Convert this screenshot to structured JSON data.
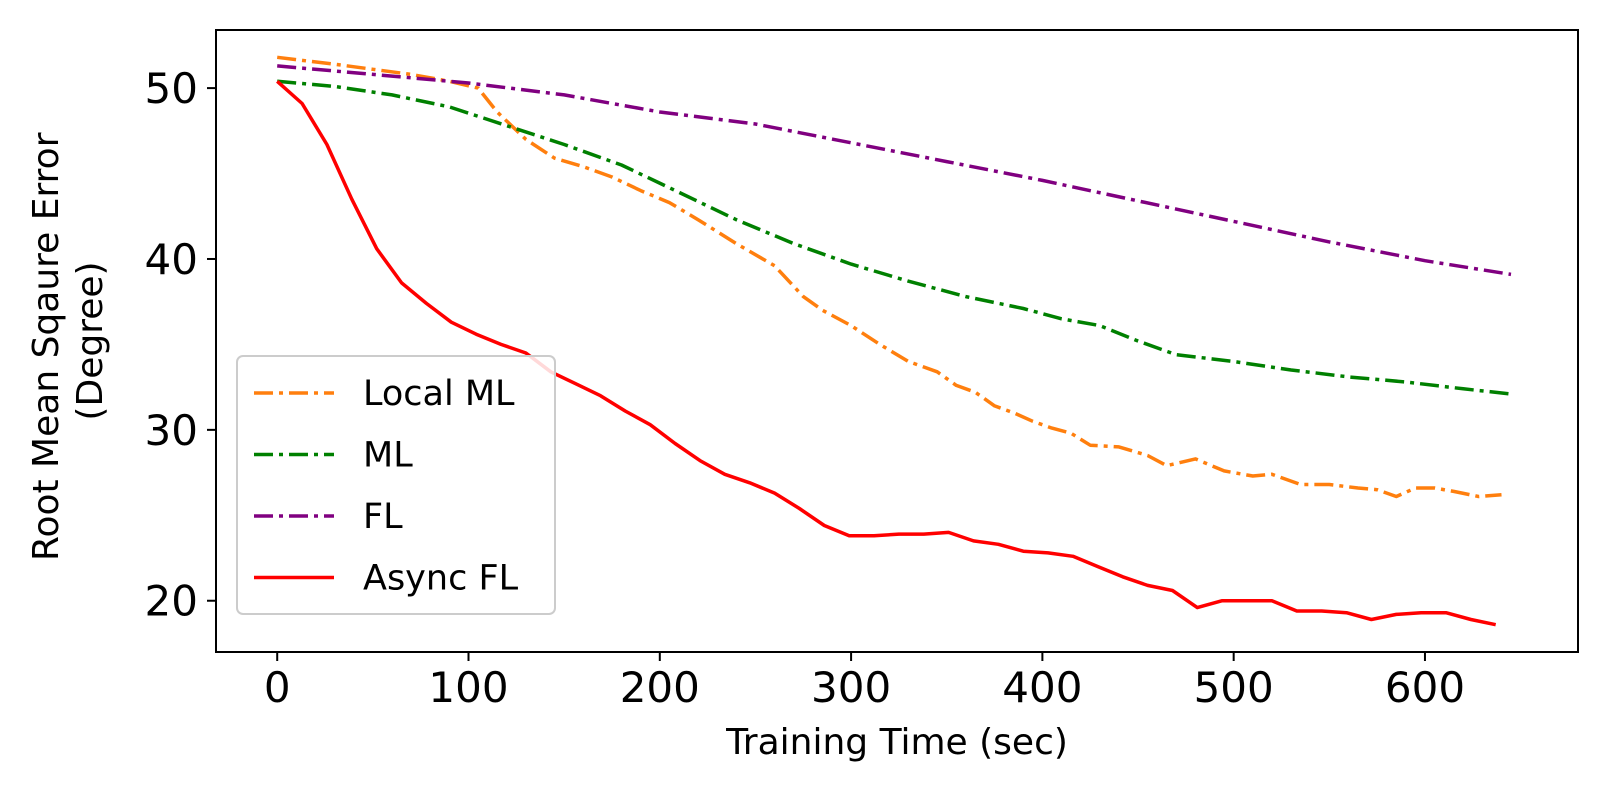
{
  "chart_data": {
    "type": "line",
    "title": "",
    "xlabel": "Training Time (sec)",
    "ylabel_lines": [
      "Root Mean Sqaure Error",
      "(Degree)"
    ],
    "xlim": [
      -32,
      680
    ],
    "ylim": [
      17,
      53.4
    ],
    "xticks": [
      0,
      100,
      200,
      300,
      400,
      500,
      600
    ],
    "yticks": [
      20,
      30,
      40,
      50
    ],
    "legend_position": "lower-left",
    "series": [
      {
        "name": "Local ML",
        "color": "#ff7f0e",
        "style": "dashdot",
        "x": [
          0,
          15,
          30,
          50,
          70,
          90,
          105,
          115,
          130,
          145,
          160,
          175,
          190,
          205,
          220,
          240,
          260,
          275,
          285,
          300,
          315,
          330,
          345,
          355,
          365,
          375,
          385,
          395,
          405,
          415,
          425,
          440,
          455,
          465,
          480,
          495,
          510,
          520,
          535,
          550,
          565,
          575,
          585,
          595,
          605,
          615,
          628,
          640
        ],
        "y": [
          51.8,
          51.6,
          51.4,
          51.1,
          50.8,
          50.4,
          50.0,
          48.6,
          47.0,
          45.9,
          45.4,
          44.8,
          44.0,
          43.3,
          42.3,
          40.9,
          39.6,
          37.8,
          37.0,
          36.1,
          35.0,
          34.0,
          33.4,
          32.6,
          32.2,
          31.4,
          31.0,
          30.5,
          30.1,
          29.8,
          29.1,
          29.0,
          28.5,
          27.9,
          28.3,
          27.6,
          27.3,
          27.4,
          26.8,
          26.8,
          26.6,
          26.5,
          26.1,
          26.6,
          26.6,
          26.4,
          26.1,
          26.2
        ]
      },
      {
        "name": "ML",
        "color": "#008000",
        "style": "dashdot",
        "x": [
          0,
          30,
          60,
          90,
          120,
          150,
          180,
          210,
          240,
          270,
          300,
          330,
          360,
          390,
          410,
          430,
          450,
          470,
          500,
          530,
          560,
          590,
          620,
          645
        ],
        "y": [
          50.4,
          50.1,
          49.6,
          48.9,
          47.8,
          46.7,
          45.5,
          43.9,
          42.3,
          40.9,
          39.7,
          38.7,
          37.8,
          37.1,
          36.5,
          36.1,
          35.2,
          34.4,
          34.0,
          33.5,
          33.1,
          32.8,
          32.4,
          32.1
        ]
      },
      {
        "name": "FL",
        "color": "#800080",
        "style": "dashdot",
        "x": [
          0,
          50,
          100,
          150,
          200,
          250,
          300,
          350,
          400,
          450,
          500,
          550,
          600,
          645
        ],
        "y": [
          51.3,
          50.8,
          50.3,
          49.6,
          48.6,
          47.9,
          46.8,
          45.7,
          44.6,
          43.4,
          42.2,
          41.0,
          39.9,
          39.1
        ]
      },
      {
        "name": "Async FL",
        "color": "#ff0000",
        "style": "solid",
        "x": [
          0,
          13,
          26,
          39,
          52,
          65,
          78,
          91,
          104,
          117,
          130,
          143,
          156,
          169,
          182,
          195,
          208,
          221,
          234,
          247,
          260,
          273,
          286,
          299,
          312,
          325,
          338,
          351,
          364,
          377,
          390,
          403,
          416,
          429,
          442,
          455,
          468,
          481,
          494,
          507,
          520,
          533,
          546,
          559,
          572,
          585,
          598,
          611,
          624,
          637
        ],
        "y": [
          50.4,
          49.1,
          46.7,
          43.5,
          40.6,
          38.6,
          37.4,
          36.3,
          35.6,
          35.0,
          34.5,
          33.4,
          32.7,
          32.0,
          31.1,
          30.3,
          29.2,
          28.2,
          27.4,
          26.9,
          26.3,
          25.4,
          24.4,
          23.8,
          23.8,
          23.9,
          23.9,
          24.0,
          23.5,
          23.3,
          22.9,
          22.8,
          22.6,
          22.0,
          21.4,
          20.9,
          20.6,
          19.6,
          20.0,
          20.0,
          20.0,
          19.4,
          19.4,
          19.3,
          18.9,
          19.2,
          19.3,
          19.3,
          18.9,
          18.6
        ]
      }
    ]
  }
}
